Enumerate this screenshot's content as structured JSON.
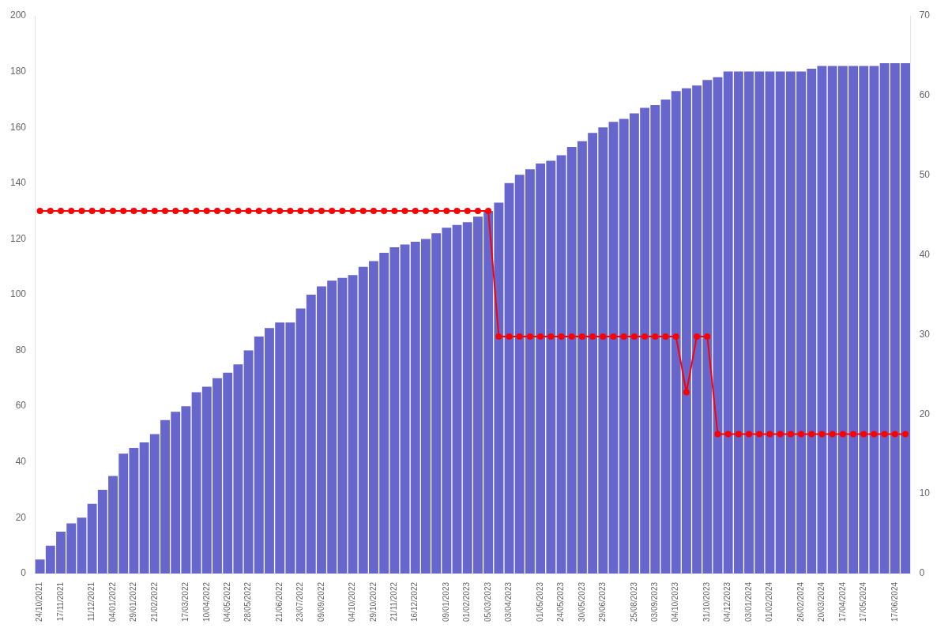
{
  "chart_data": {
    "type": "bar",
    "categories": [
      "24/10/2021",
      null,
      "17/11/2021",
      null,
      null,
      "11/12/2021",
      null,
      "04/01/2022",
      null,
      "29/01/2022",
      null,
      "21/02/2022",
      null,
      null,
      "17/03/2022",
      null,
      "10/04/2022",
      null,
      "04/05/2022",
      null,
      "28/05/2022",
      null,
      null,
      "21/06/2022",
      null,
      "23/07/2022",
      null,
      "09/09/2022",
      null,
      null,
      "04/10/2022",
      null,
      "29/10/2022",
      null,
      "21/11/2022",
      null,
      "16/12/2022",
      null,
      null,
      "09/01/2023",
      null,
      "01/02/2023",
      null,
      "05/03/2023",
      null,
      "03/04/2023",
      null,
      null,
      "01/05/2023",
      null,
      "24/05/2023",
      null,
      "30/05/2023",
      null,
      "29/06/2023",
      null,
      null,
      "25/08/2023",
      null,
      "03/09/2023",
      null,
      "04/10/2023",
      null,
      null,
      "31/10/2023",
      null,
      "04/12/2023",
      null,
      "03/01/2024",
      null,
      "01/02/2024",
      null,
      null,
      "26/02/2024",
      null,
      "20/03/2024",
      null,
      "17/04/2024",
      null,
      "17/05/2024",
      null,
      null,
      "17/06/2024",
      null
    ],
    "series": [
      {
        "type": "bar",
        "color": "#6666cc",
        "values": [
          5,
          10,
          15,
          18,
          20,
          25,
          30,
          35,
          43,
          45,
          47,
          50,
          55,
          58,
          60,
          65,
          67,
          70,
          72,
          75,
          80,
          85,
          88,
          90,
          90,
          95,
          100,
          103,
          105,
          106,
          107,
          110,
          112,
          115,
          117,
          118,
          119,
          120,
          122,
          124,
          125,
          126,
          128,
          130,
          133,
          140,
          143,
          145,
          147,
          148,
          150,
          153,
          155,
          158,
          160,
          162,
          163,
          165,
          167,
          168,
          170,
          173,
          174,
          175,
          177,
          178,
          180,
          180,
          180,
          180,
          180,
          180,
          180,
          180,
          181,
          182,
          182,
          182,
          182,
          182,
          182,
          183,
          183,
          183
        ]
      },
      {
        "type": "line",
        "color": "#ff0000",
        "marker": "circle",
        "values": [
          130,
          130,
          130,
          130,
          130,
          130,
          130,
          130,
          130,
          130,
          130,
          130,
          130,
          130,
          130,
          130,
          130,
          130,
          130,
          130,
          130,
          130,
          130,
          130,
          130,
          130,
          130,
          130,
          130,
          130,
          130,
          130,
          130,
          130,
          130,
          130,
          130,
          130,
          130,
          130,
          130,
          130,
          130,
          130,
          85,
          85,
          85,
          85,
          85,
          85,
          85,
          85,
          85,
          85,
          85,
          85,
          85,
          85,
          85,
          85,
          85,
          85,
          65,
          85,
          85,
          50,
          50,
          50,
          50,
          50,
          50,
          50,
          50,
          50,
          50,
          50,
          50,
          50,
          50,
          50,
          50,
          50,
          50,
          50
        ]
      }
    ],
    "ylim": [
      0,
      200
    ],
    "yticks": [
      0,
      20,
      40,
      60,
      80,
      100,
      120,
      140,
      160,
      180,
      200
    ],
    "y2lim": [
      0,
      70
    ],
    "y2ticks": [
      0,
      10,
      20,
      30,
      40,
      50,
      60,
      70
    ],
    "grid": false
  }
}
